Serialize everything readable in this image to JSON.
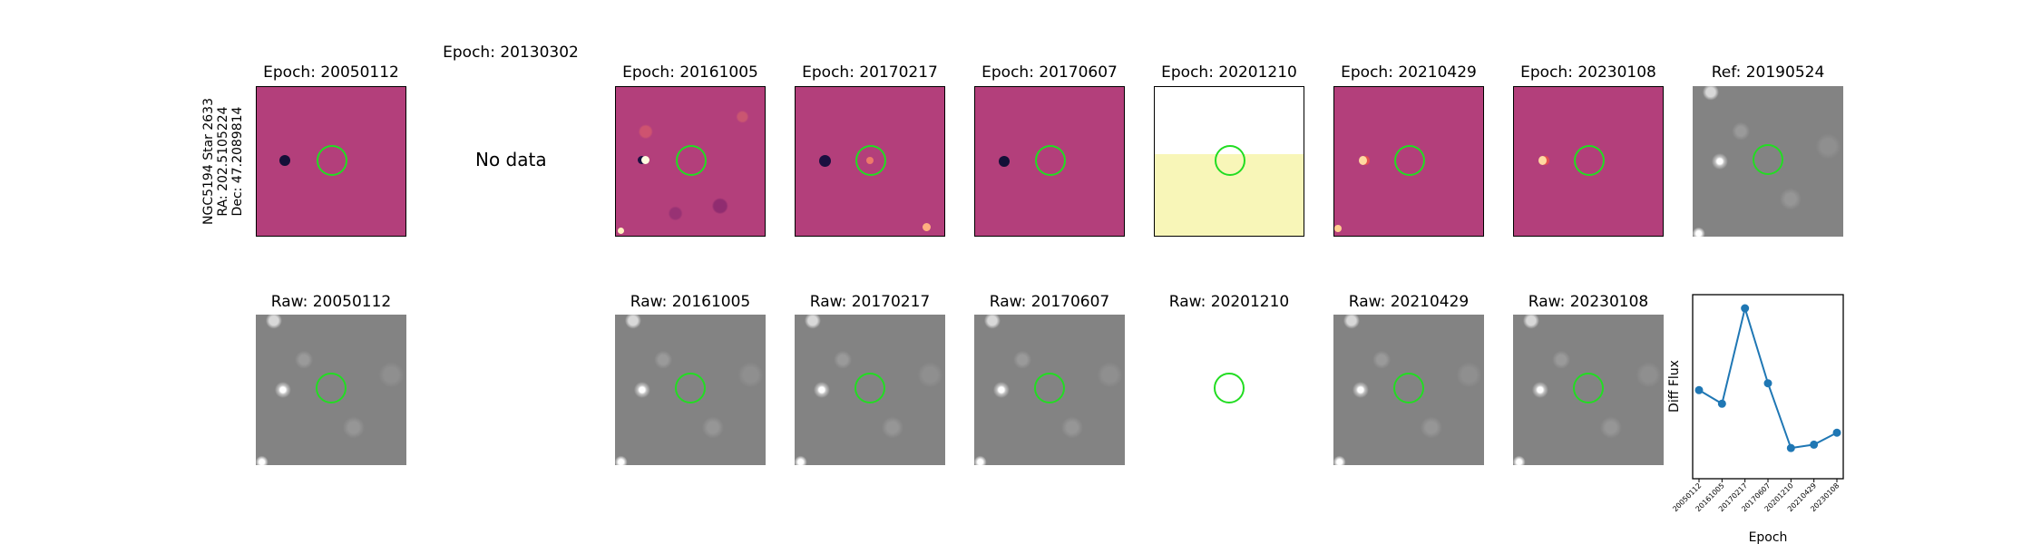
{
  "star_info": {
    "name": "NGC5194 Star 2633",
    "ra": "RA: 202.5105224",
    "dec": "Dec: 47.2089814"
  },
  "top_row": [
    {
      "title": "Epoch: 20050112",
      "kind": "diff"
    },
    {
      "title": "Epoch: 20130302",
      "kind": "nodata",
      "text": "No data"
    },
    {
      "title": "Epoch: 20161005",
      "kind": "diff-noisy"
    },
    {
      "title": "Epoch: 20170217",
      "kind": "diff"
    },
    {
      "title": "Epoch: 20170607",
      "kind": "diff"
    },
    {
      "title": "Epoch: 20201210",
      "kind": "diff-yellow"
    },
    {
      "title": "Epoch: 20210429",
      "kind": "diff"
    },
    {
      "title": "Epoch: 20230108",
      "kind": "diff"
    },
    {
      "title": "Ref: 20190524",
      "kind": "gray"
    }
  ],
  "bottom_row": [
    {
      "title": "Raw: 20050112",
      "kind": "gray"
    },
    {
      "title": "Raw: 20161005",
      "kind": "gray"
    },
    {
      "title": "Raw: 20170217",
      "kind": "gray"
    },
    {
      "title": "Raw: 20170607",
      "kind": "gray"
    },
    {
      "title": "Raw: 20201210",
      "kind": "blank"
    },
    {
      "title": "Raw: 20210429",
      "kind": "gray"
    },
    {
      "title": "Raw: 20230108",
      "kind": "gray"
    }
  ],
  "colors": {
    "circle": "#22dd22",
    "line": "#1f77b4"
  },
  "chart_data": {
    "type": "line",
    "title": "",
    "xlabel": "Epoch",
    "ylabel": "Diff Flux",
    "categories": [
      "20050112",
      "20161005",
      "20170217",
      "20170607",
      "20201210",
      "20210429",
      "20230108"
    ],
    "values": [
      0.52,
      0.44,
      1.0,
      0.56,
      0.18,
      0.2,
      0.27
    ],
    "ylim": [
      0.0,
      1.08
    ],
    "y_ticks_visible": false
  }
}
